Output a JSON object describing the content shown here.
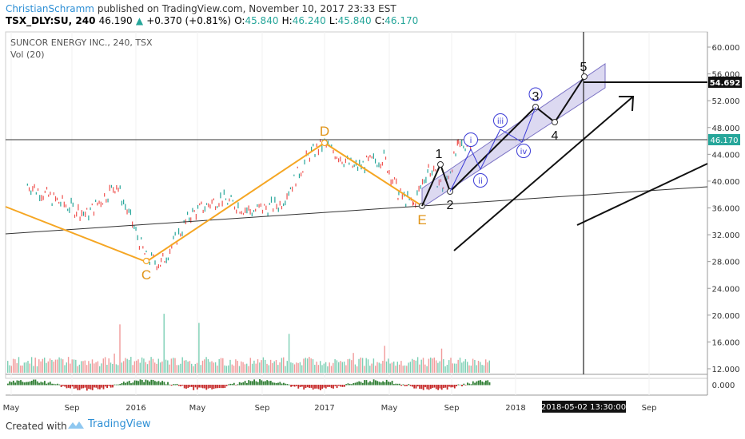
{
  "header": {
    "author": "ChristianSchramm",
    "published": "published on TradingView.com, November 10, 2017 23:33 EST",
    "symbol": "TSX_DLY:SU, 240",
    "last": "46.190",
    "change": "+0.370 (+0.81%)",
    "o_label": "O:",
    "o": "45.840",
    "h_label": "H:",
    "h": "46.240",
    "l_label": "L:",
    "l": "45.840",
    "c_label": "C:",
    "c": "46.170"
  },
  "footer": {
    "created": "Created with",
    "brand": "TradingView"
  },
  "colors": {
    "up": "#26a69a",
    "down": "#ef5350",
    "pattern": "#f5a623",
    "channel": "#9c93d6",
    "wave_blue": "#3a3ad6"
  },
  "chart_data": {
    "type": "line",
    "title": "SUNCOR ENERGY INC., 240, TSX",
    "indicator": "Vol (20)",
    "ylim": [
      12.0,
      61.0
    ],
    "y_ticks": [
      "60.000",
      "56.000",
      "52.000",
      "48.000",
      "44.000",
      "40.000",
      "36.000",
      "32.000",
      "28.000",
      "24.000",
      "20.000",
      "16.000",
      "12.000"
    ],
    "osc_tick": "0.000",
    "last_price_label": "46.170",
    "target_label": "54.692",
    "x_ticks": [
      "May",
      "Sep",
      "2016",
      "May",
      "Sep",
      "2017",
      "May",
      "Sep",
      "2018",
      "Sep"
    ],
    "crosshair_time": "2018-05-02 13:30:00",
    "series": [
      {
        "values_points": [
          [
            "2015-05",
            39.5
          ],
          [
            "2015-07",
            37.0
          ],
          [
            "2015-09",
            35.0
          ],
          [
            "2015-11",
            39.5
          ],
          [
            "2016-01",
            28.5
          ],
          [
            "2016-02",
            27.7
          ],
          [
            "2016-04",
            35.0
          ],
          [
            "2016-06",
            37.5
          ],
          [
            "2016-08",
            35.5
          ],
          [
            "2016-10",
            36.5
          ],
          [
            "2016-12",
            44.0
          ],
          [
            "2017-01",
            45.5
          ],
          [
            "2017-03",
            42.0
          ],
          [
            "2017-05",
            43.5
          ],
          [
            "2017-06",
            38.0
          ],
          [
            "2017-07",
            36.5
          ],
          [
            "2017-08",
            42.0
          ],
          [
            "2017-09",
            39.0
          ],
          [
            "2017-10",
            45.0
          ],
          [
            "2017-11",
            46.17
          ]
        ]
      }
    ],
    "pattern_points": [
      {
        "label": "C",
        "x": "2016-01",
        "y": 27.7
      },
      {
        "label": "D",
        "x": "2016-12",
        "y": 46.0
      },
      {
        "label": "E",
        "x": "2017-07",
        "y": 36.5
      }
    ],
    "wave_labels": [
      {
        "label": "1",
        "y": 42.5
      },
      {
        "label": "2",
        "y": 38.5
      },
      {
        "label": "3",
        "y": 51.0
      },
      {
        "label": "4",
        "y": 48.8
      },
      {
        "label": "5",
        "y": 55.0
      }
    ],
    "subwave_labels": [
      "i",
      "ii",
      "iii",
      "iv"
    ]
  }
}
